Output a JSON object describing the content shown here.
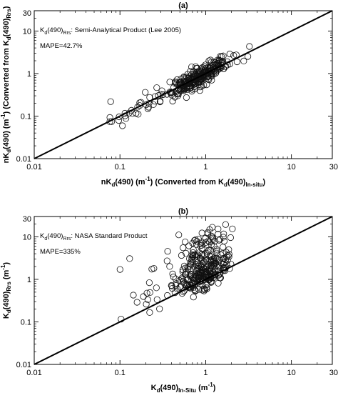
{
  "chart_data": [
    {
      "type": "scatter",
      "panel_label": "(a)",
      "xlabel": {
        "main": "nK",
        "sub1": "d",
        "mid": "(490) (m",
        "sup": "-1",
        "tail": ") (Converted from K",
        "sub2": "d",
        "tail2": "(490)",
        "sub3": "In-situ",
        "end": ")"
      },
      "ylabel": {
        "main": "nK",
        "sub1": "d",
        "mid": "(490) (m",
        "sup": "-1",
        "tail": ") (Converted from K",
        "sub2": "d",
        "tail2": "(490)",
        "sub3": "Rrs",
        "end": ")"
      },
      "xscale": "log",
      "yscale": "log",
      "xlim": [
        0.01,
        30
      ],
      "ylim": [
        0.01,
        30
      ],
      "xticks": [
        "0.01",
        "0.1",
        "1",
        "10",
        "30"
      ],
      "yticks": [
        "0.01",
        "0.1",
        "1",
        "10",
        "30"
      ],
      "annotation_product": {
        "k": "K",
        "d": "d",
        "w": "(490)",
        "s": "Rrs",
        "rest": ": Semi-Analytical Product (Lee 2005)"
      },
      "annotation_mape": "MAPE=42.7%",
      "reference_line": "1:1",
      "marker": "open-circle",
      "n_points": 300,
      "x_center": 0.85,
      "x_spread": 0.16,
      "y_ratio_spread": 0.08
    },
    {
      "type": "scatter",
      "panel_label": "(b)",
      "xlabel": {
        "main": "K",
        "sub1": "d",
        "mid": "(490)",
        "sub2": "In-Situ",
        "tail": " (m",
        "sup": "-1",
        "end": ")"
      },
      "ylabel": {
        "main": "K",
        "sub1": "d",
        "mid": "(490)",
        "sub2": "Rrs",
        "tail": " (m",
        "sup": "-1",
        "end": ")"
      },
      "xscale": "log",
      "yscale": "log",
      "xlim": [
        0.01,
        30
      ],
      "ylim": [
        0.01,
        30
      ],
      "xticks": [
        "0.01",
        "0.1",
        "1",
        "10",
        "30"
      ],
      "yticks": [
        "0.01",
        "0.1",
        "1",
        "10",
        "30"
      ],
      "annotation_product": {
        "k": "K",
        "d": "d",
        "w": "(490)",
        "s": "Rrs",
        "rest": ": NASA Standard Product"
      },
      "annotation_mape": "MAPE=335%",
      "reference_line": "1:1",
      "marker": "open-circle",
      "n_points": 330,
      "x_center": 0.95,
      "x_spread": 0.13,
      "y_ratio_spread": 0.28
    }
  ]
}
